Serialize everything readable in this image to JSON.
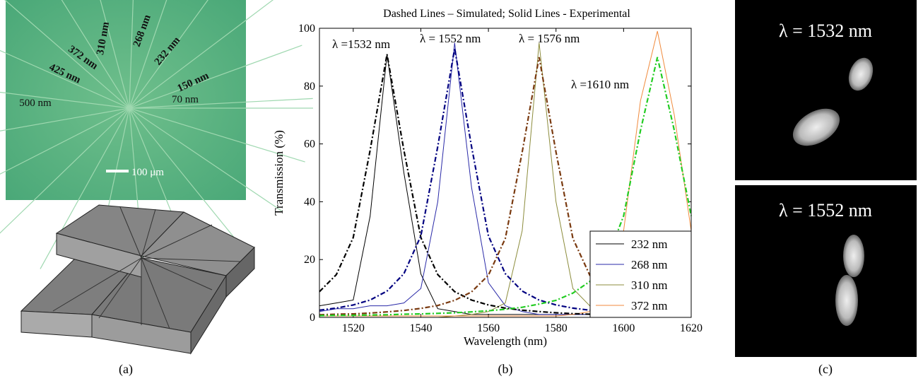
{
  "chart_data": {
    "type": "line",
    "title": "Dashed Lines – Simulated; Solid Lines - Experimental",
    "xlabel": "Wavelength (nm)",
    "ylabel": "Transmission (%)",
    "x": [
      1510,
      1515,
      1520,
      1525,
      1530,
      1535,
      1540,
      1545,
      1550,
      1555,
      1560,
      1565,
      1570,
      1575,
      1580,
      1585,
      1590,
      1595,
      1600,
      1605,
      1610,
      1615,
      1620
    ],
    "xlim": [
      1510,
      1620
    ],
    "ylim": [
      0,
      100
    ],
    "xticks": [
      1520,
      1540,
      1560,
      1580,
      1600,
      1620
    ],
    "yticks": [
      0,
      20,
      40,
      60,
      80,
      100
    ],
    "legend": "lower right",
    "series": [
      {
        "name": "232 nm",
        "color": "#000000",
        "linestyle": "solid",
        "values": [
          4,
          5,
          6,
          35,
          91,
          50,
          15,
          3,
          2,
          1,
          1,
          1,
          1,
          1,
          1,
          1,
          1,
          1,
          1,
          1,
          1,
          1,
          1
        ]
      },
      {
        "name": "268 nm",
        "color": "#2a2aa8",
        "linestyle": "solid",
        "values": [
          2,
          3,
          3,
          4,
          4,
          5,
          10,
          40,
          95,
          45,
          12,
          4,
          2,
          1,
          1,
          1,
          1,
          1,
          1,
          1,
          1,
          1,
          1
        ]
      },
      {
        "name": "310 nm",
        "color": "#8c8c3c",
        "linestyle": "solid",
        "values": [
          0,
          0,
          0,
          0,
          0,
          0,
          0,
          0,
          0.5,
          1,
          2,
          5,
          30,
          95,
          40,
          10,
          4,
          2,
          1,
          1,
          1,
          5,
          12
        ]
      },
      {
        "name": "372 nm",
        "color": "#f08a3c",
        "linestyle": "solid",
        "values": [
          0.5,
          0.5,
          0.5,
          0.5,
          0.5,
          0.5,
          0.5,
          0.5,
          0.5,
          0.5,
          0.5,
          0.5,
          0.5,
          0.5,
          0.5,
          1,
          2,
          8,
          30,
          75,
          99,
          70,
          30
        ]
      },
      {
        "color": "#000000",
        "linestyle": "dashed",
        "values": [
          8.9,
          14.8,
          27.6,
          57.8,
          91,
          57.8,
          27.6,
          14.8,
          8.9,
          6.0,
          4.3,
          3.2,
          2.5,
          2.0,
          1.6,
          1.3,
          1.1,
          1.0,
          0.8,
          0.7,
          0.6,
          0.6,
          0.5
        ]
      },
      {
        "color": "#000080",
        "linestyle": "dashed",
        "values": [
          2.5,
          3.2,
          4.3,
          6.0,
          9.1,
          15.1,
          28.2,
          59.1,
          93,
          59.1,
          28.2,
          15.1,
          9.1,
          6.0,
          4.3,
          3.2,
          2.5,
          2.0,
          1.6,
          1.3,
          1.1,
          0.9,
          0.8
        ]
      },
      {
        "color": "#7a3a10",
        "linestyle": "dashed",
        "values": [
          0.9,
          1.1,
          1.2,
          1.5,
          1.9,
          2.4,
          3.1,
          4.1,
          5.9,
          8.8,
          14.6,
          27.3,
          57.2,
          90,
          57.2,
          27.3,
          14.6,
          8.8,
          5.9,
          4.1,
          3.1,
          2.4,
          1.9
        ]
      },
      {
        "color": "#22cc22",
        "linestyle": "dashed",
        "values": [
          0.6,
          0.7,
          0.7,
          0.8,
          0.9,
          1.1,
          1.2,
          1.4,
          1.6,
          1.9,
          2.3,
          2.8,
          3.5,
          4.6,
          5.9,
          8.4,
          12.4,
          19.9,
          35.1,
          64.7,
          90,
          64.7,
          35.1
        ]
      }
    ],
    "annotations": [
      "λ =1532 nm",
      "λ = 1552 nm",
      "λ = 1576 nm",
      "λ =1610 nm"
    ]
  },
  "panels": {
    "a": {
      "label": "(a)",
      "widths": [
        "310 nm",
        "268 nm",
        "372 nm",
        "232 nm",
        "425 nm",
        "150 nm",
        "500 nm",
        "70 nm"
      ],
      "scale": "100 μm"
    },
    "b": {
      "label": "(b)"
    },
    "c": {
      "label": "(c)",
      "images": [
        "λ = 1532 nm",
        "λ = 1552 nm"
      ]
    }
  }
}
